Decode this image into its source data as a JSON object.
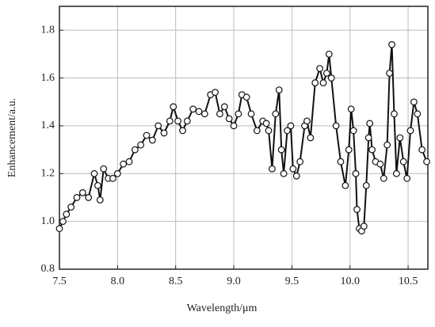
{
  "chart_data": {
    "type": "line",
    "xlabel": "Wavelength/μm",
    "ylabel": "Enhancement/a.u.",
    "xlim": [
      7.5,
      10.67
    ],
    "ylim": [
      0.8,
      1.9
    ],
    "xticks": [
      7.5,
      {
        "value": 8,
        "label": "8.0"
      },
      8.5,
      {
        "value": 9,
        "label": "9.0"
      },
      9.5,
      {
        "value": 10,
        "label": "10.0"
      },
      10.5
    ],
    "yticks": [
      0.8,
      {
        "value": 1,
        "label": "1.0"
      },
      1.2,
      1.4,
      1.6,
      1.8
    ],
    "grid": true,
    "series": [
      {
        "color": "#111111",
        "marker_fill": "#ffffff",
        "x": [
          7.5,
          7.53,
          7.56,
          7.6,
          7.65,
          7.7,
          7.75,
          7.8,
          7.83,
          7.85,
          7.88,
          7.92,
          7.96,
          8.0,
          8.05,
          8.1,
          8.15,
          8.2,
          8.25,
          8.3,
          8.35,
          8.4,
          8.45,
          8.48,
          8.52,
          8.56,
          8.6,
          8.65,
          8.7,
          8.75,
          8.8,
          8.84,
          8.88,
          8.92,
          8.96,
          9.0,
          9.04,
          9.07,
          9.11,
          9.15,
          9.2,
          9.25,
          9.28,
          9.3,
          9.33,
          9.36,
          9.39,
          9.41,
          9.43,
          9.46,
          9.49,
          9.51,
          9.54,
          9.57,
          9.61,
          9.63,
          9.66,
          9.7,
          9.74,
          9.77,
          9.8,
          9.82,
          9.84,
          9.88,
          9.92,
          9.96,
          9.99,
          10.01,
          10.03,
          10.05,
          10.06,
          10.08,
          10.1,
          10.12,
          10.14,
          10.16,
          10.17,
          10.19,
          10.22,
          10.26,
          10.29,
          10.32,
          10.34,
          10.36,
          10.38,
          10.4,
          10.43,
          10.46,
          10.49,
          10.52,
          10.55,
          10.58,
          10.62,
          10.66
        ],
        "values": [
          0.97,
          1.0,
          1.03,
          1.06,
          1.1,
          1.12,
          1.1,
          1.2,
          1.15,
          1.09,
          1.22,
          1.18,
          1.18,
          1.2,
          1.24,
          1.25,
          1.3,
          1.32,
          1.36,
          1.34,
          1.4,
          1.37,
          1.42,
          1.48,
          1.42,
          1.38,
          1.42,
          1.47,
          1.46,
          1.45,
          1.53,
          1.54,
          1.45,
          1.48,
          1.43,
          1.4,
          1.45,
          1.53,
          1.52,
          1.45,
          1.38,
          1.42,
          1.41,
          1.38,
          1.22,
          1.45,
          1.55,
          1.3,
          1.2,
          1.38,
          1.4,
          1.22,
          1.19,
          1.25,
          1.4,
          1.42,
          1.35,
          1.58,
          1.64,
          1.58,
          1.62,
          1.7,
          1.6,
          1.4,
          1.25,
          1.15,
          1.3,
          1.47,
          1.38,
          1.2,
          1.05,
          0.97,
          0.96,
          0.98,
          1.15,
          1.35,
          1.41,
          1.3,
          1.25,
          1.24,
          1.18,
          1.32,
          1.62,
          1.74,
          1.45,
          1.2,
          1.35,
          1.25,
          1.18,
          1.38,
          1.5,
          1.45,
          1.3,
          1.25
        ]
      }
    ]
  }
}
